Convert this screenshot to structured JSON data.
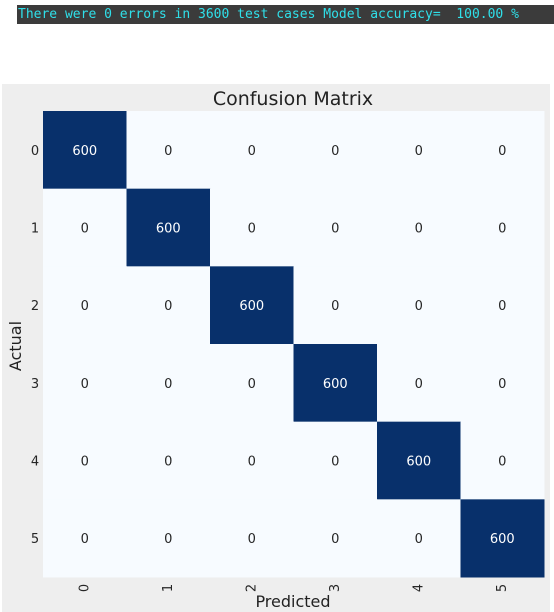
{
  "console": {
    "message": "There were 0 errors in 3600 test cases Model accuracy=  100.00 %"
  },
  "chart_data": {
    "type": "heatmap",
    "title": "Confusion Matrix",
    "xlabel": "Predicted",
    "ylabel": "Actual",
    "x_categories": [
      "0",
      "1",
      "2",
      "3",
      "4",
      "5"
    ],
    "y_categories": [
      "0",
      "1",
      "2",
      "3",
      "4",
      "5"
    ],
    "matrix": [
      [
        600,
        0,
        0,
        0,
        0,
        0
      ],
      [
        0,
        600,
        0,
        0,
        0,
        0
      ],
      [
        0,
        0,
        600,
        0,
        0,
        0
      ],
      [
        0,
        0,
        0,
        600,
        0,
        0
      ],
      [
        0,
        0,
        0,
        0,
        600,
        0
      ],
      [
        0,
        0,
        0,
        0,
        0,
        600
      ]
    ],
    "colormap": {
      "low": "#f7fbff",
      "high": "#08306b"
    },
    "grid": false,
    "colorbar": false
  }
}
